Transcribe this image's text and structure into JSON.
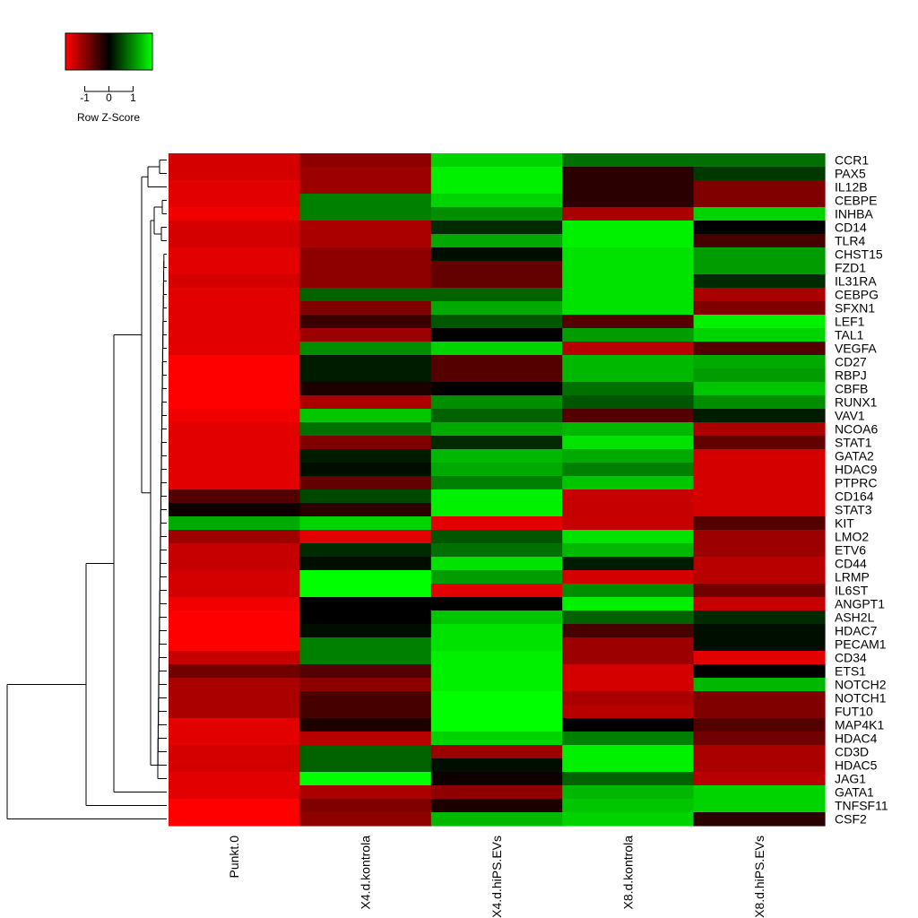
{
  "chart_data": {
    "type": "heatmap",
    "legend": {
      "title": "Row Z-Score",
      "ticks": [
        "-1",
        "0",
        "1"
      ],
      "tick_values": [
        -1,
        0,
        1
      ],
      "range": [
        -1.8,
        1.8
      ],
      "colors": {
        "low": "#ff0000",
        "mid": "#000000",
        "high": "#00ff00"
      }
    },
    "columns": [
      "Punkt.0",
      "X4.d.kontrola",
      "X4.d.hiPS.EVs",
      "X8.d.kontrola",
      "X8.d.hiPS.EVs"
    ],
    "rows": [
      "CCR1",
      "PAX5",
      "IL12B",
      "CEBPE",
      "INHBA",
      "CD14",
      "TLR4",
      "CHST15",
      "FZD1",
      "IL31RA",
      "CEBPG",
      "SFXN1",
      "LEF1",
      "TAL1",
      "VEGFA",
      "CD27",
      "RBPJ",
      "CBFB",
      "RUNX1",
      "VAV1",
      "NCOA6",
      "STAT1",
      "GATA2",
      "HDAC9",
      "PTPRC",
      "CD164",
      "STAT3",
      "KIT",
      "LMO2",
      "ETV6",
      "CD44",
      "LRMP",
      "IL6ST",
      "ANGPT1",
      "ASH2L",
      "HDAC7",
      "PECAM1",
      "CD34",
      "ETS1",
      "NOTCH2",
      "NOTCH1",
      "FUT10",
      "MAP4K1",
      "HDAC4",
      "CD3D",
      "HDAC5",
      "JAG1",
      "GATA1",
      "TNFSF11",
      "CSF2"
    ],
    "values": [
      [
        -1.5,
        -1.0,
        1.5,
        0.8,
        0.8
      ],
      [
        -1.5,
        -1.1,
        1.7,
        -0.3,
        0.4
      ],
      [
        -1.6,
        -1.1,
        1.7,
        -0.3,
        -0.9
      ],
      [
        -1.6,
        0.9,
        1.5,
        -0.3,
        -0.9
      ],
      [
        -1.7,
        0.9,
        1.0,
        -1.2,
        1.5
      ],
      [
        -1.5,
        -1.2,
        0.3,
        1.7,
        0.0
      ],
      [
        -1.5,
        -1.2,
        1.2,
        1.7,
        -0.5
      ],
      [
        -1.6,
        -1.0,
        0.1,
        1.6,
        1.1
      ],
      [
        -1.6,
        -1.0,
        -0.7,
        1.6,
        1.1
      ],
      [
        -1.5,
        -1.0,
        -0.7,
        1.6,
        0.3
      ],
      [
        -1.6,
        0.7,
        0.7,
        1.6,
        -1.2
      ],
      [
        -1.6,
        -0.9,
        1.2,
        1.6,
        -0.9
      ],
      [
        -1.6,
        -0.4,
        0.6,
        -0.6,
        1.7
      ],
      [
        -1.6,
        -1.1,
        0.0,
        1.1,
        1.5
      ],
      [
        -1.6,
        1.0,
        1.5,
        -1.3,
        -0.6
      ],
      [
        -1.8,
        0.2,
        -0.6,
        1.3,
        1.2
      ],
      [
        -1.8,
        0.2,
        -0.6,
        1.3,
        1.1
      ],
      [
        -1.8,
        -0.2,
        0.0,
        0.8,
        1.4
      ],
      [
        -1.8,
        -1.2,
        1.0,
        0.6,
        1.0
      ],
      [
        -1.7,
        1.4,
        0.7,
        -0.6,
        0.2
      ],
      [
        -1.6,
        0.8,
        1.2,
        1.3,
        -1.2
      ],
      [
        -1.6,
        -0.9,
        0.3,
        1.6,
        -0.7
      ],
      [
        -1.6,
        0.2,
        1.3,
        1.2,
        -1.5
      ],
      [
        -1.6,
        0.1,
        1.2,
        0.9,
        -1.5
      ],
      [
        -1.6,
        -0.7,
        0.9,
        1.4,
        -1.5
      ],
      [
        -0.6,
        0.5,
        1.7,
        -1.4,
        -1.5
      ],
      [
        -0.1,
        -0.3,
        1.7,
        -1.4,
        -1.5
      ],
      [
        1.2,
        1.5,
        -1.6,
        -1.4,
        -0.6
      ],
      [
        -1.1,
        -1.6,
        0.6,
        1.6,
        -1.1
      ],
      [
        -1.4,
        0.3,
        0.8,
        1.3,
        -1.1
      ],
      [
        -1.4,
        0.1,
        1.6,
        0.2,
        -1.3
      ],
      [
        -1.5,
        1.8,
        1.1,
        -1.5,
        -1.3
      ],
      [
        -1.5,
        1.8,
        -1.6,
        1.0,
        -0.8
      ],
      [
        -1.7,
        0.0,
        0.0,
        1.7,
        -1.4
      ],
      [
        -1.8,
        0.0,
        1.4,
        0.7,
        0.3
      ],
      [
        -1.8,
        0.1,
        1.6,
        -0.5,
        0.1
      ],
      [
        -1.8,
        0.9,
        1.6,
        -1.1,
        0.1
      ],
      [
        -1.4,
        0.9,
        1.7,
        -1.1,
        -1.6
      ],
      [
        -0.8,
        -0.6,
        1.7,
        -1.5,
        0.0
      ],
      [
        -1.2,
        -1.0,
        1.7,
        -1.5,
        1.3
      ],
      [
        -1.2,
        -0.5,
        1.8,
        -1.2,
        -0.9
      ],
      [
        -1.2,
        -0.5,
        1.8,
        -1.3,
        -0.9
      ],
      [
        -1.6,
        -0.2,
        1.8,
        0.0,
        -0.6
      ],
      [
        -1.6,
        -1.3,
        1.5,
        0.9,
        -0.8
      ],
      [
        -1.5,
        0.7,
        -1.1,
        1.7,
        -1.2
      ],
      [
        -1.5,
        0.7,
        0.1,
        1.7,
        -1.2
      ],
      [
        -1.6,
        1.8,
        -0.1,
        0.7,
        -1.3
      ],
      [
        -1.6,
        -1.2,
        -1.0,
        1.3,
        1.5
      ],
      [
        -1.8,
        -0.9,
        -0.2,
        1.4,
        1.5
      ],
      [
        -1.8,
        -1.0,
        1.3,
        1.5,
        -0.3
      ]
    ]
  }
}
